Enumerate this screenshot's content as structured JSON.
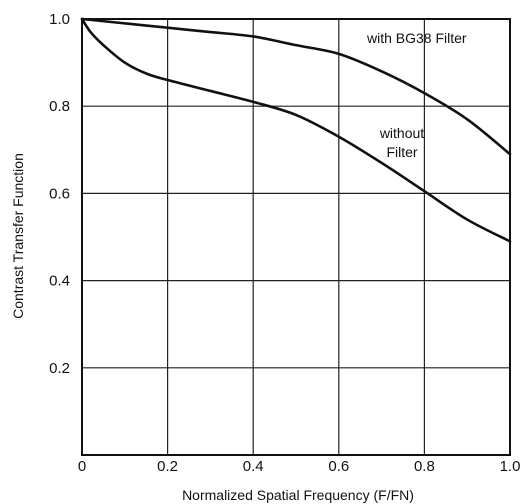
{
  "chart_data": {
    "type": "line",
    "title": "",
    "xlabel": "Normalized Spatial Frequency (F/FN)",
    "ylabel": "Contrast Transfer Function",
    "xlim": [
      0,
      1.0
    ],
    "ylim": [
      0,
      1.0
    ],
    "x_ticks": [
      "0",
      "0.2",
      "0.4",
      "0.6",
      "0.8",
      "1.0"
    ],
    "y_ticks": [
      "0.2",
      "0.4",
      "0.6",
      "0.8",
      "1.0"
    ],
    "grid": true,
    "line_color": "#111111",
    "series": [
      {
        "name": "with BG38 Filter",
        "x": [
          0,
          0.1,
          0.2,
          0.3,
          0.4,
          0.5,
          0.6,
          0.7,
          0.8,
          0.9,
          1.0
        ],
        "y": [
          1.0,
          0.99,
          0.98,
          0.97,
          0.96,
          0.94,
          0.92,
          0.88,
          0.83,
          0.77,
          0.69
        ]
      },
      {
        "name": "without Filter",
        "x": [
          0,
          0.02,
          0.05,
          0.1,
          0.15,
          0.2,
          0.3,
          0.4,
          0.5,
          0.6,
          0.7,
          0.8,
          0.9,
          1.0
        ],
        "y": [
          1.0,
          0.97,
          0.94,
          0.9,
          0.875,
          0.86,
          0.835,
          0.81,
          0.78,
          0.73,
          0.67,
          0.605,
          0.54,
          0.49
        ]
      }
    ]
  }
}
